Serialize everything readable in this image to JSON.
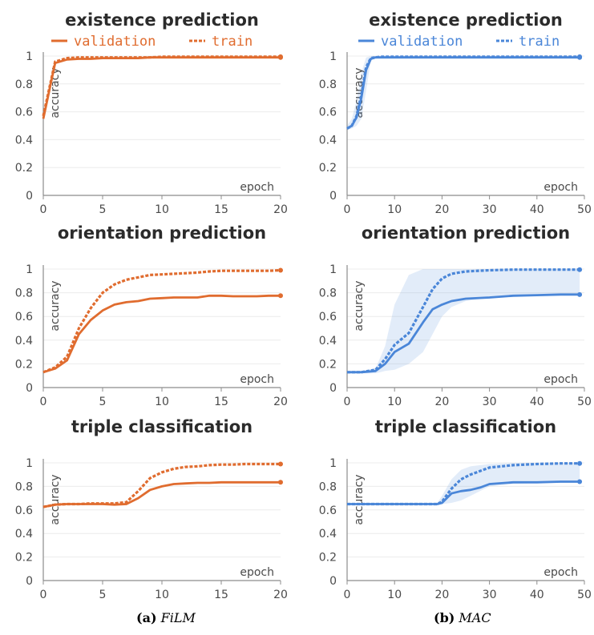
{
  "colors": {
    "film": "#e06c2f",
    "mac": "#4a86d8",
    "axis": "#8c8c8c",
    "grid": "#ececec",
    "text": "#4a4a4a",
    "title": "#2b2b2b"
  },
  "captions": [
    {
      "label": "(a)",
      "name": "FiLM"
    },
    {
      "label": "(b)",
      "name": "MAC"
    }
  ],
  "chart_data": [
    {
      "type": "line",
      "title": "existence prediction",
      "xlabel": "epoch",
      "ylabel": "accuracy",
      "xlim": [
        0,
        20
      ],
      "ylim": [
        0,
        1
      ],
      "xticks": [
        0,
        5,
        10,
        15,
        20
      ],
      "yticks": [
        0,
        0.2,
        0.4,
        0.6,
        0.8,
        1
      ],
      "legend": "top",
      "color": "film",
      "x": [
        0,
        1,
        2,
        3,
        4,
        5,
        6,
        7,
        8,
        9,
        10,
        11,
        12,
        13,
        14,
        15,
        16,
        17,
        18,
        19,
        20
      ],
      "series": [
        {
          "name": "validation",
          "style": "solid",
          "values": [
            0.55,
            0.95,
            0.975,
            0.98,
            0.98,
            0.985,
            0.985,
            0.985,
            0.985,
            0.99,
            0.99,
            0.99,
            0.99,
            0.99,
            0.99,
            0.99,
            0.99,
            0.99,
            0.99,
            0.99,
            0.99
          ]
        },
        {
          "name": "train",
          "style": "dashed",
          "values": [
            0.57,
            0.96,
            0.985,
            0.99,
            0.99,
            0.99,
            0.99,
            0.99,
            0.99,
            0.99,
            0.995,
            0.995,
            0.995,
            0.995,
            0.995,
            0.995,
            0.995,
            0.995,
            0.995,
            0.995,
            0.995
          ]
        }
      ]
    },
    {
      "type": "line",
      "title": "existence prediction",
      "xlabel": "epoch",
      "ylabel": "accuracy",
      "xlim": [
        0,
        50
      ],
      "ylim": [
        0,
        1
      ],
      "xticks": [
        0,
        10,
        20,
        30,
        40,
        50
      ],
      "yticks": [
        0,
        0.2,
        0.4,
        0.6,
        0.8,
        1
      ],
      "legend": "top",
      "color": "mac",
      "x": [
        0,
        1,
        2,
        3,
        4,
        5,
        6,
        7,
        8,
        9,
        10,
        15,
        20,
        25,
        30,
        35,
        40,
        45,
        49
      ],
      "band": {
        "lower": [
          0.47,
          0.48,
          0.5,
          0.55,
          0.75,
          0.97,
          0.99,
          0.99,
          0.99,
          0.99,
          0.99,
          0.99,
          0.99,
          0.99,
          0.99,
          0.99,
          0.99,
          0.99,
          0.99
        ],
        "upper": [
          0.5,
          0.55,
          0.68,
          0.88,
          0.99,
          1,
          1,
          1,
          1,
          1,
          1,
          1,
          1,
          1,
          1,
          1,
          1,
          1,
          1
        ]
      },
      "series": [
        {
          "name": "validation",
          "style": "solid",
          "values": [
            0.48,
            0.5,
            0.56,
            0.7,
            0.9,
            0.98,
            0.99,
            0.99,
            0.99,
            0.99,
            0.99,
            0.99,
            0.99,
            0.99,
            0.99,
            0.99,
            0.99,
            0.99,
            0.99
          ]
        },
        {
          "name": "train",
          "style": "dashed",
          "values": [
            0.48,
            0.5,
            0.57,
            0.72,
            0.92,
            0.985,
            0.99,
            0.995,
            0.995,
            0.995,
            0.995,
            0.995,
            0.995,
            0.995,
            0.995,
            0.995,
            0.995,
            0.995,
            0.995
          ]
        }
      ]
    },
    {
      "type": "line",
      "title": "orientation prediction",
      "xlabel": "epoch",
      "ylabel": "accuracy",
      "xlim": [
        0,
        20
      ],
      "ylim": [
        0,
        1
      ],
      "xticks": [
        0,
        5,
        10,
        15,
        20
      ],
      "yticks": [
        0,
        0.2,
        0.4,
        0.6,
        0.8,
        1
      ],
      "color": "film",
      "x": [
        0,
        1,
        2,
        3,
        4,
        5,
        6,
        7,
        8,
        9,
        10,
        11,
        12,
        13,
        14,
        15,
        16,
        17,
        18,
        19,
        20
      ],
      "series": [
        {
          "name": "validation",
          "style": "solid",
          "values": [
            0.13,
            0.16,
            0.23,
            0.45,
            0.57,
            0.65,
            0.7,
            0.72,
            0.73,
            0.75,
            0.755,
            0.76,
            0.76,
            0.76,
            0.775,
            0.775,
            0.77,
            0.77,
            0.77,
            0.775,
            0.775
          ]
        },
        {
          "name": "train",
          "style": "dashed",
          "values": [
            0.13,
            0.17,
            0.26,
            0.5,
            0.67,
            0.8,
            0.87,
            0.91,
            0.93,
            0.95,
            0.955,
            0.96,
            0.965,
            0.97,
            0.98,
            0.985,
            0.985,
            0.985,
            0.985,
            0.985,
            0.99
          ]
        }
      ]
    },
    {
      "type": "line",
      "title": "orientation prediction",
      "xlabel": "epoch",
      "ylabel": "accuracy",
      "xlim": [
        0,
        50
      ],
      "ylim": [
        0,
        1
      ],
      "xticks": [
        0,
        10,
        20,
        30,
        40,
        50
      ],
      "yticks": [
        0,
        0.2,
        0.4,
        0.6,
        0.8,
        1
      ],
      "color": "mac",
      "x": [
        0,
        3,
        6,
        8,
        10,
        13,
        16,
        18,
        20,
        22,
        25,
        30,
        35,
        40,
        45,
        49
      ],
      "band": {
        "lower": [
          0.12,
          0.12,
          0.12,
          0.14,
          0.15,
          0.2,
          0.3,
          0.45,
          0.6,
          0.68,
          0.73,
          0.76,
          0.77,
          0.78,
          0.78,
          0.78
        ],
        "upper": [
          0.14,
          0.14,
          0.16,
          0.35,
          0.7,
          0.95,
          1,
          1,
          1,
          1,
          1,
          1,
          1,
          1,
          1,
          1
        ]
      },
      "series": [
        {
          "name": "validation",
          "style": "solid",
          "values": [
            0.13,
            0.13,
            0.14,
            0.2,
            0.3,
            0.37,
            0.55,
            0.66,
            0.7,
            0.73,
            0.75,
            0.76,
            0.775,
            0.78,
            0.785,
            0.785
          ]
        },
        {
          "name": "train",
          "style": "dashed",
          "values": [
            0.13,
            0.13,
            0.15,
            0.24,
            0.36,
            0.46,
            0.68,
            0.83,
            0.92,
            0.96,
            0.98,
            0.99,
            0.995,
            0.995,
            0.995,
            0.995
          ]
        }
      ]
    },
    {
      "type": "line",
      "title": "triple classification",
      "xlabel": "epoch",
      "ylabel": "accuracy",
      "xlim": [
        0,
        20
      ],
      "ylim": [
        0,
        1
      ],
      "xticks": [
        0,
        5,
        10,
        15,
        20
      ],
      "yticks": [
        0,
        0.2,
        0.4,
        0.6,
        0.8,
        1
      ],
      "color": "film",
      "x": [
        0,
        1,
        2,
        3,
        4,
        5,
        6,
        7,
        8,
        9,
        10,
        11,
        12,
        13,
        14,
        15,
        16,
        17,
        18,
        19,
        20
      ],
      "series": [
        {
          "name": "validation",
          "style": "solid",
          "values": [
            0.625,
            0.645,
            0.65,
            0.65,
            0.65,
            0.65,
            0.645,
            0.65,
            0.7,
            0.77,
            0.8,
            0.82,
            0.825,
            0.83,
            0.83,
            0.835,
            0.835,
            0.835,
            0.835,
            0.835,
            0.835
          ]
        },
        {
          "name": "train",
          "style": "dashed",
          "values": [
            0.625,
            0.645,
            0.65,
            0.65,
            0.655,
            0.655,
            0.655,
            0.665,
            0.76,
            0.87,
            0.92,
            0.95,
            0.965,
            0.97,
            0.98,
            0.985,
            0.985,
            0.99,
            0.99,
            0.99,
            0.99
          ]
        }
      ]
    },
    {
      "type": "line",
      "title": "triple classification",
      "xlabel": "epoch",
      "ylabel": "accuracy",
      "xlim": [
        0,
        50
      ],
      "ylim": [
        0,
        1
      ],
      "xticks": [
        0,
        10,
        20,
        30,
        40,
        50
      ],
      "yticks": [
        0,
        0.2,
        0.4,
        0.6,
        0.8,
        1
      ],
      "color": "mac",
      "x": [
        0,
        5,
        10,
        15,
        19,
        20,
        22,
        24,
        26,
        28,
        30,
        35,
        40,
        45,
        49
      ],
      "band": {
        "lower": [
          0.65,
          0.65,
          0.65,
          0.65,
          0.65,
          0.65,
          0.66,
          0.68,
          0.72,
          0.76,
          0.8,
          0.82,
          0.83,
          0.83,
          0.83
        ],
        "upper": [
          0.66,
          0.66,
          0.66,
          0.66,
          0.66,
          0.72,
          0.86,
          0.94,
          0.97,
          0.98,
          0.99,
          1,
          1,
          1,
          1
        ]
      },
      "series": [
        {
          "name": "validation",
          "style": "solid",
          "values": [
            0.65,
            0.65,
            0.65,
            0.65,
            0.65,
            0.66,
            0.74,
            0.76,
            0.77,
            0.79,
            0.82,
            0.835,
            0.835,
            0.84,
            0.84
          ]
        },
        {
          "name": "train",
          "style": "dashed",
          "values": [
            0.65,
            0.65,
            0.65,
            0.65,
            0.65,
            0.67,
            0.78,
            0.86,
            0.9,
            0.93,
            0.96,
            0.98,
            0.99,
            0.995,
            0.995
          ]
        }
      ]
    }
  ]
}
